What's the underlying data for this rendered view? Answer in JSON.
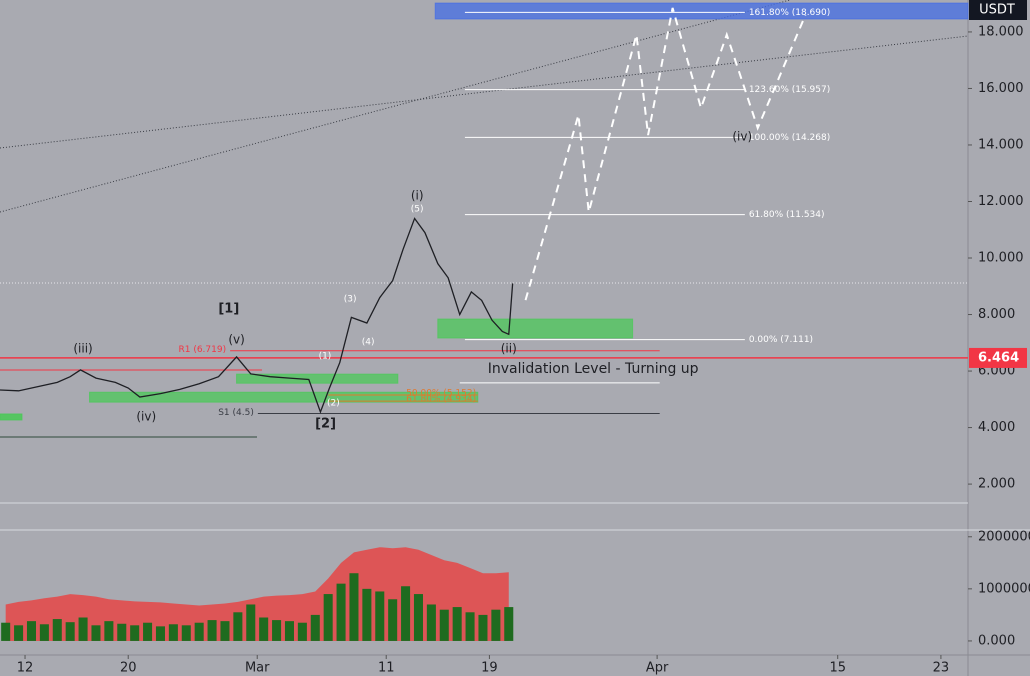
{
  "chart_data": {
    "type": "line",
    "currency": "USDT",
    "xlim": [
      41.06,
      116.1
    ],
    "xticks": [
      {
        "value": 43,
        "label": "12"
      },
      {
        "value": 51,
        "label": "20"
      },
      {
        "value": 61,
        "label": "Mar"
      },
      {
        "value": 71,
        "label": "11"
      },
      {
        "value": 79,
        "label": "19"
      },
      {
        "value": 92,
        "label": "Apr"
      },
      {
        "value": 106,
        "label": "15"
      },
      {
        "value": 114,
        "label": "23"
      }
    ],
    "ylim": [
      1.26,
      19.13
    ],
    "yticks": [
      {
        "value": 2,
        "label": "2.000"
      },
      {
        "value": 4,
        "label": "4.000"
      },
      {
        "value": 6,
        "label": "6.000"
      },
      {
        "value": 8,
        "label": "8.000"
      },
      {
        "value": 10,
        "label": "10.000"
      },
      {
        "value": 12,
        "label": "12.000"
      },
      {
        "value": 14,
        "label": "14.000"
      },
      {
        "value": 16,
        "label": "16.000"
      },
      {
        "value": 18,
        "label": "18.000"
      }
    ],
    "series": [
      {
        "color": "#1e1f24",
        "dashed": false,
        "x": [
          41.06,
          42.5,
          44,
          45.5,
          46.5,
          47.3,
          48.5,
          50,
          51,
          51.9,
          53.5,
          55,
          56.5,
          58,
          59.4,
          60.5,
          62,
          63.5,
          65,
          65.9,
          66.6,
          67.4,
          68.3,
          69.5,
          70.5,
          71.5,
          72.3,
          73.2,
          74,
          75,
          75.8,
          76.7,
          77.6,
          78.4,
          79.2,
          80,
          80.5,
          80.8
        ],
        "values": [
          5.33,
          5.3,
          5.45,
          5.6,
          5.8,
          6.04,
          5.75,
          5.6,
          5.4,
          5.08,
          5.2,
          5.35,
          5.55,
          5.8,
          6.5,
          5.9,
          5.8,
          5.75,
          5.7,
          4.55,
          5.4,
          6.3,
          7.9,
          7.7,
          8.6,
          9.2,
          10.3,
          11.4,
          10.9,
          9.8,
          9.3,
          8.0,
          8.8,
          8.5,
          7.8,
          7.4,
          7.3,
          9.1
        ]
      },
      {
        "color": "#ffffff",
        "dashed": true,
        "x": [
          81.8,
          85.9,
          86.7,
          90.4,
          91.3,
          93.2,
          95.4,
          97.4,
          99.8,
          103.5
        ],
        "values": [
          8.51,
          15.06,
          11.63,
          17.9,
          14.35,
          18.85,
          15.31,
          17.9,
          14.6,
          18.6
        ]
      }
    ],
    "price_tag": {
      "value": 6.464,
      "label": "6.464",
      "color": "#f23645"
    },
    "fib_levels": [
      {
        "value": 18.69,
        "label": "161.80% (18.690)"
      },
      {
        "value": 15.957,
        "label": "123.60% (15.957)"
      },
      {
        "value": 14.268,
        "label": "100.00% (14.268)"
      },
      {
        "value": 11.534,
        "label": "61.80% (11.534)"
      },
      {
        "value": 7.111,
        "label": "0.00% (7.111)"
      }
    ],
    "fib_xlim": [
      77.1,
      98.8
    ],
    "levels": [
      {
        "value": 6.719,
        "label": "R1 (6.719)",
        "color": "#f23645",
        "xlim": [
          58.9,
          92.2
        ]
      },
      {
        "value": 4.5,
        "label": "S1 (4.5)",
        "color": "#3a3d45",
        "xlim": [
          61.05,
          92.2
        ]
      },
      {
        "value": 5.152,
        "label": "50.00% (5.152)",
        "color": "#e0792f",
        "xlim": [
          66.5,
          78.1
        ]
      },
      {
        "value": 4.934,
        "label": "61.80% (4.934)",
        "color": "#e0792f",
        "xlim": [
          66.5,
          78.1
        ]
      },
      {
        "value": 5.58,
        "label": "Invalidation Level - Turning up",
        "color": "#ffffff",
        "xlim": [
          76.7,
          92.2
        ]
      }
    ],
    "zones": [
      {
        "color": "rgba(76,200,90,0.75)",
        "xlim": [
          75.0,
          90.1
        ],
        "ylim": [
          7.17,
          7.84
        ]
      },
      {
        "color": "rgba(76,200,90,0.75)",
        "xlim": [
          59.4,
          71.9
        ],
        "ylim": [
          5.57,
          5.89
        ]
      },
      {
        "color": "rgba(76,200,90,0.75)",
        "xlim": [
          48.0,
          78.1
        ],
        "ylim": [
          4.9,
          5.25
        ]
      },
      {
        "color": "rgba(76,200,90,0.9)",
        "xlim": [
          41.06,
          42.76
        ],
        "ylim": [
          4.27,
          4.48
        ]
      },
      {
        "color": "rgba(70,110,230,0.75)",
        "xlim": [
          74.8,
          116.1
        ],
        "ylim": [
          18.46,
          19.02
        ]
      }
    ],
    "wave_labels": [
      {
        "text": "(iii)",
        "x": 47.5,
        "y": 6.78
      },
      {
        "text": "(iv)",
        "x": 52.4,
        "y": 4.37
      },
      {
        "text": "(v)",
        "x": 59.4,
        "y": 7.1
      },
      {
        "text": "[1]",
        "x": 58.8,
        "y": 8.2
      },
      {
        "text": "[2]",
        "x": 66.3,
        "y": 4.13
      },
      {
        "text": "(1)",
        "x": 66.25,
        "y": 6.53
      },
      {
        "text": "(2)",
        "x": 66.9,
        "y": 4.87
      },
      {
        "text": "(3)",
        "x": 68.2,
        "y": 8.55
      },
      {
        "text": "(4)",
        "x": 69.6,
        "y": 7.03
      },
      {
        "text": "(i)",
        "x": 73.4,
        "y": 12.19
      },
      {
        "text": "(5)",
        "x": 73.4,
        "y": 11.73
      },
      {
        "text": "(ii)",
        "x": 80.5,
        "y": 6.78
      },
      {
        "text": "(iv)",
        "x": 98.6,
        "y": 14.28
      }
    ],
    "volume": {
      "ylim": [
        -270000,
        2130000
      ],
      "yticks": [
        {
          "value": 0,
          "label": "0.000"
        },
        {
          "value": 1000000,
          "label": "1000000"
        },
        {
          "value": 2000000,
          "label": "2000000"
        }
      ],
      "color": "#1f6b1f",
      "ma_color": "rgba(230,70,70,0.85)",
      "x": [
        41.5,
        42.5,
        43.5,
        44.5,
        45.5,
        46.5,
        47.5,
        48.5,
        49.5,
        50.5,
        51.5,
        52.5,
        53.5,
        54.5,
        55.5,
        56.5,
        57.5,
        58.5,
        59.5,
        60.5,
        61.5,
        62.5,
        63.5,
        64.5,
        65.5,
        66.5,
        67.5,
        68.5,
        69.5,
        70.5,
        71.5,
        72.5,
        73.5,
        74.5,
        75.5,
        76.5,
        77.5,
        78.5,
        79.5,
        80.5
      ],
      "values": [
        350000,
        300000,
        380000,
        320000,
        420000,
        360000,
        450000,
        300000,
        380000,
        330000,
        300000,
        350000,
        280000,
        320000,
        300000,
        350000,
        400000,
        380000,
        550000,
        700000,
        450000,
        400000,
        380000,
        350000,
        500000,
        900000,
        1100000,
        1300000,
        1000000,
        950000,
        800000,
        1050000,
        900000,
        700000,
        600000,
        650000,
        550000,
        500000,
        600000,
        650000
      ],
      "ma_values": [
        700000,
        750000,
        780000,
        820000,
        850000,
        900000,
        880000,
        850000,
        800000,
        780000,
        760000,
        750000,
        740000,
        720000,
        700000,
        680000,
        700000,
        720000,
        750000,
        800000,
        850000,
        870000,
        880000,
        900000,
        950000,
        1200000,
        1500000,
        1700000,
        1750000,
        1800000,
        1780000,
        1800000,
        1750000,
        1650000,
        1550000,
        1500000,
        1400000,
        1300000,
        1300000,
        1320000
      ]
    }
  }
}
